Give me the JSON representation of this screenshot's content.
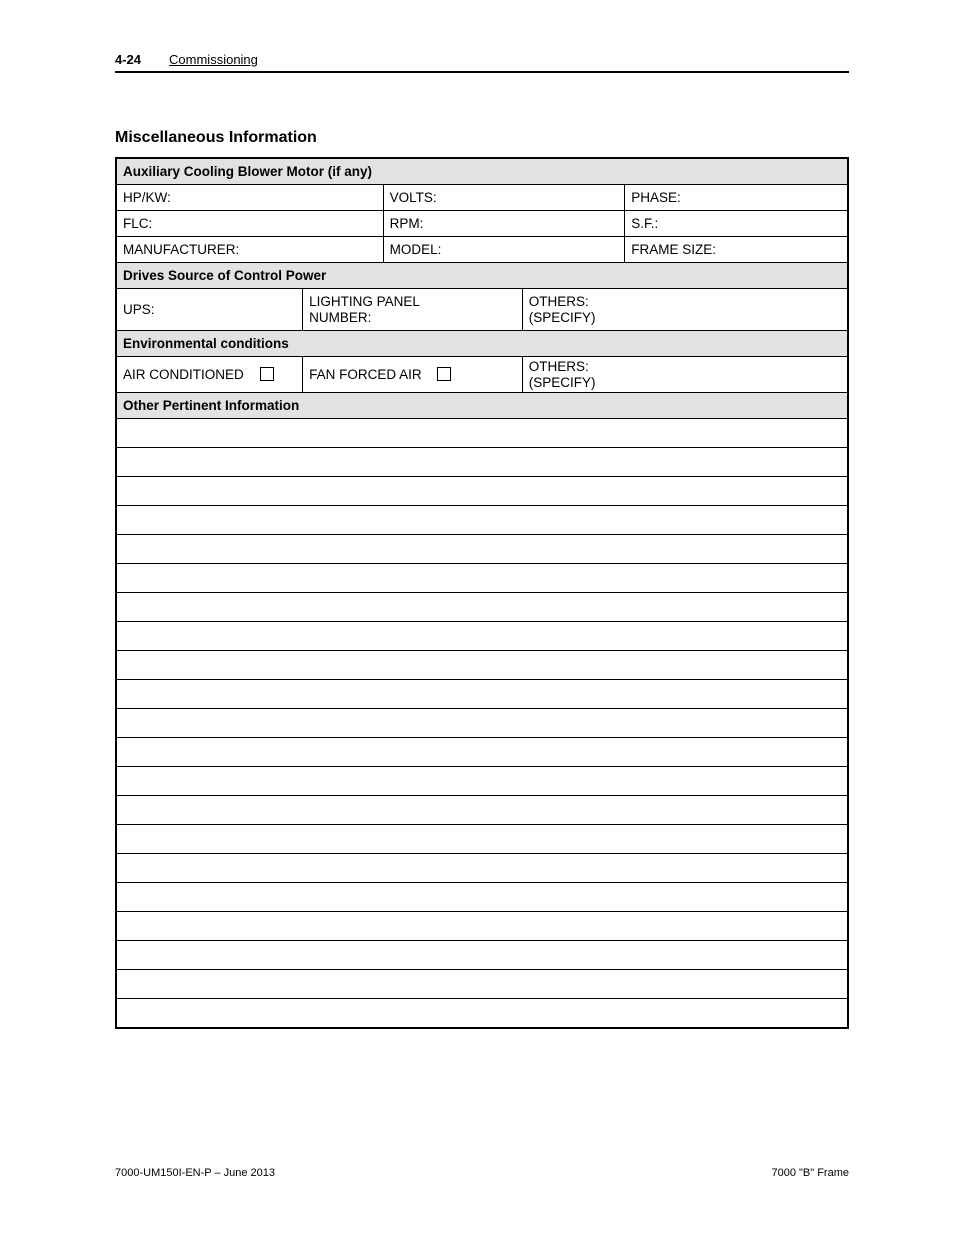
{
  "header": {
    "page_number": "4-24",
    "section": "Commissioning"
  },
  "section_title": "Miscellaneous Information",
  "table": {
    "aux_blower": {
      "header": "Auxiliary Cooling Blower Motor (if any)",
      "row1": {
        "c1": "HP/KW:",
        "c2": "VOLTS:",
        "c3": "PHASE:"
      },
      "row2": {
        "c1": "FLC:",
        "c2": "RPM:",
        "c3": "S.F.:"
      },
      "row3": {
        "c1": "MANUFACTURER:",
        "c2": "MODEL:",
        "c3": "FRAME SIZE:"
      }
    },
    "control_power": {
      "header": "Drives Source of Control Power",
      "ups": "UPS:",
      "lighting_panel_line1": "LIGHTING PANEL",
      "lighting_panel_line2": "NUMBER:",
      "others_line1": "OTHERS:",
      "others_line2": "(SPECIFY)"
    },
    "env": {
      "header": "Environmental conditions",
      "air_conditioned": "AIR CONDITIONED",
      "fan_forced": "FAN FORCED AIR",
      "others_line1": "OTHERS:",
      "others_line2": "(SPECIFY)"
    },
    "other_info": {
      "header": "Other Pertinent Information"
    }
  },
  "blank_row_count": 21,
  "footer": {
    "left": "7000-UM150I-EN-P – June 2013",
    "right": "7000 \"B\" Frame"
  },
  "colors": {
    "section_head_bg": "#e2e2e2",
    "border": "#000000",
    "background": "#ffffff"
  }
}
